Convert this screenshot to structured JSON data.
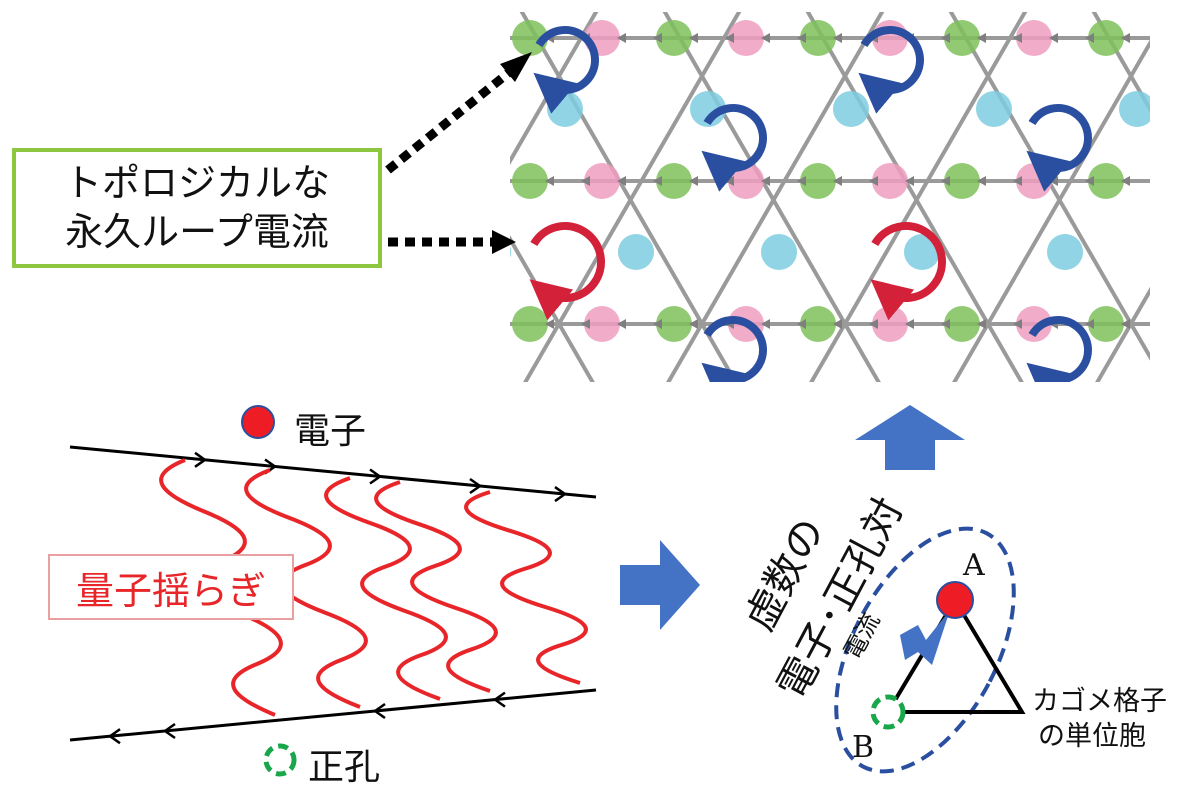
{
  "labels": {
    "topological_line1": "トポロジカルな",
    "topological_line2": "永久ループ電流",
    "electron": "電子",
    "hole": "正孔",
    "quantum_fluctuation": "量子揺らぎ",
    "pair_line1": "虚数の",
    "pair_line2": "電子･正孔対",
    "current": "電流",
    "kagome_line1": "カゴメ格子",
    "kagome_line2": "の単位胞",
    "site_a": "A",
    "site_b": "B"
  },
  "colors": {
    "blue_loop": "#2b4fa0",
    "red_loop": "#d3213a",
    "site_green": "#7fc15a",
    "site_pink": "#ee9ebf",
    "site_cyan": "#7ecde0",
    "lattice_line": "#9a9a9a",
    "arrow_blue": "#4472c4",
    "electron_red": "#ee1c24",
    "hole_green": "#1aa64a",
    "box_green": "#8dc63f",
    "fluct_red": "#e8262a"
  }
}
